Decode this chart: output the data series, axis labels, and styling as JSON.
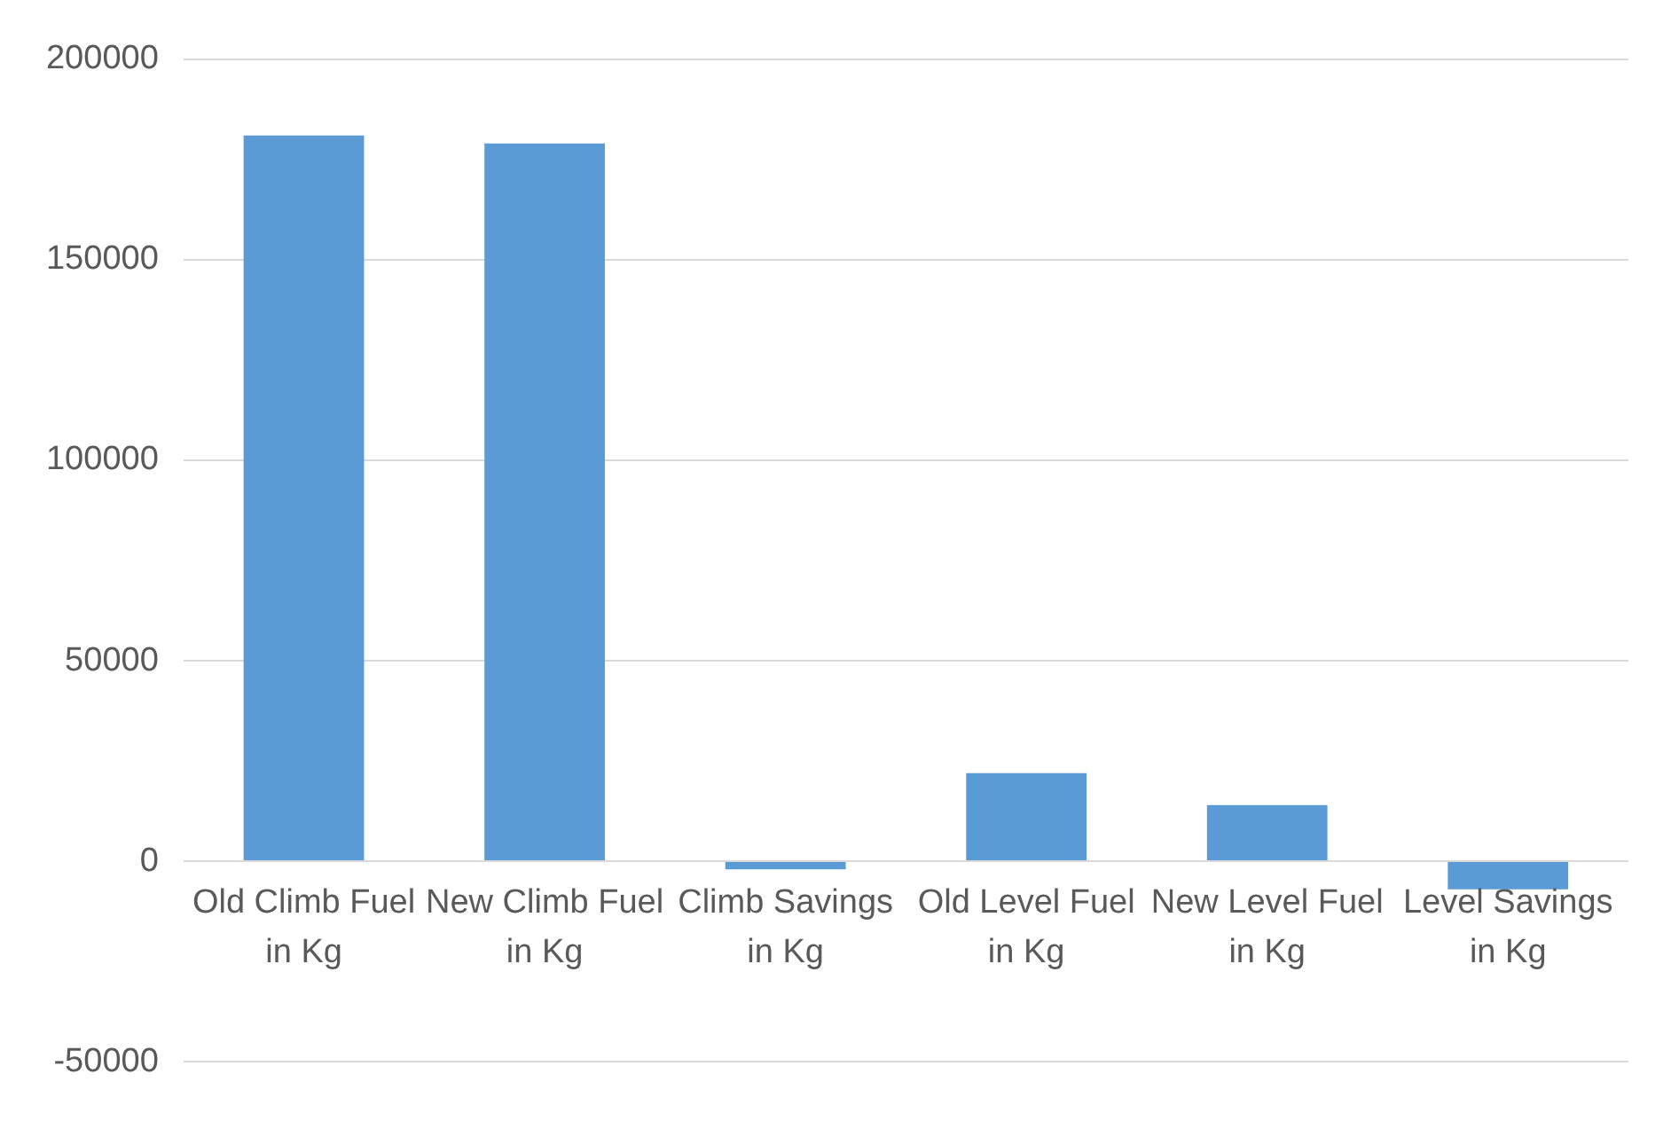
{
  "chart_data": {
    "type": "bar",
    "categories": [
      "Old Climb Fuel in Kg",
      "New Climb Fuel in Kg",
      "Climb Savings in Kg",
      "Old Level Fuel in Kg",
      "New Level Fuel in Kg",
      "Level Savings in Kg"
    ],
    "values": [
      181000,
      179000,
      -2000,
      22000,
      14000,
      -7000
    ],
    "color": "#5b9bd5",
    "ylim": [
      -50000,
      200000
    ],
    "yticks": [
      -50000,
      0,
      50000,
      100000,
      150000,
      200000
    ],
    "grid": "y"
  }
}
